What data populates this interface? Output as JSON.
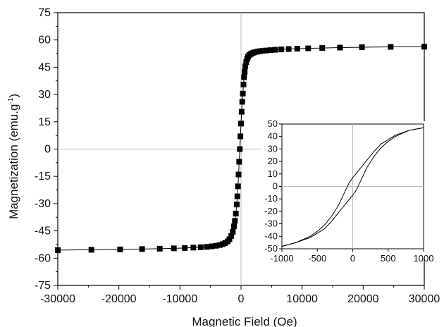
{
  "chart_data": [
    {
      "type": "scatter",
      "xlabel": "Magnetic Field (Oe)",
      "ylabel_main": "Magnetization (emu.g",
      "ylabel_sup": "-1",
      "ylabel_end": ")",
      "xlim": [
        -30000,
        30000
      ],
      "ylim": [
        -75,
        75
      ],
      "xticks": [
        "-30000",
        "-20000",
        "-10000",
        "0",
        "10000",
        "20000",
        "30000"
      ],
      "yticks": [
        "75",
        "60",
        "45",
        "30",
        "15",
        "0",
        "-15",
        "-30",
        "-45",
        "-60",
        "-75"
      ],
      "grid": false,
      "reference_lines": {
        "x": 0,
        "y": 0
      },
      "series": [
        {
          "marker": "square",
          "x": [
            -30000,
            -24500,
            -19800,
            -16200,
            -13300,
            -11000,
            -9200,
            -7800,
            -6600,
            -5600,
            -4800,
            -4100,
            -3500,
            -3000,
            -2600,
            -2200,
            -1900,
            -1600,
            -1350,
            -1150,
            -1000,
            -850,
            -700,
            -600,
            -500,
            -400,
            -300,
            -200,
            -100,
            0,
            100,
            200,
            300,
            400,
            500,
            600,
            700,
            850,
            1000,
            1150,
            1350,
            1600,
            1900,
            2200,
            2600,
            3000,
            3500,
            4100,
            4800,
            5600,
            6600,
            7800,
            9200,
            11000,
            13300,
            16200,
            19800,
            24500,
            30000
          ],
          "y": [
            -55.6,
            -55.4,
            -55.2,
            -55.0,
            -54.8,
            -54.6,
            -54.4,
            -54.2,
            -54.0,
            -53.8,
            -53.5,
            -53.2,
            -52.8,
            -52.3,
            -51.7,
            -50.8,
            -49.6,
            -47.8,
            -45.5,
            -42.5,
            -39.5,
            -35.5,
            -30.5,
            -26.0,
            -20.5,
            -14.0,
            -7.0,
            0.0,
            7.0,
            14.0,
            20.5,
            26.0,
            30.5,
            35.5,
            39.5,
            42.5,
            45.5,
            47.8,
            49.6,
            50.8,
            51.7,
            52.3,
            52.8,
            53.2,
            53.5,
            53.8,
            54.0,
            54.2,
            54.4,
            54.6,
            54.8,
            55.0,
            55.2,
            55.4,
            55.6,
            55.8,
            56.0,
            56.2,
            56.3
          ]
        }
      ]
    },
    {
      "type": "line",
      "inset": true,
      "xlim": [
        -1000,
        1000
      ],
      "ylim": [
        -50,
        50
      ],
      "xticks": [
        "-1000",
        "-500",
        "0",
        "500",
        "1000"
      ],
      "yticks": [
        "50",
        "40",
        "30",
        "20",
        "10",
        "0",
        "-10",
        "-20",
        "-30",
        "-40",
        "-50"
      ],
      "reference_lines": {
        "x": 0,
        "y": 0
      },
      "series": [
        {
          "x": [
            1000,
            800,
            600,
            400,
            300,
            200,
            100,
            0,
            -50,
            -100,
            -200,
            -300,
            -400,
            -500,
            -600,
            -800,
            -1000
          ],
          "y": [
            47,
            45,
            41,
            34,
            28,
            21,
            14,
            7,
            3,
            -3,
            -15,
            -24,
            -31,
            -36,
            -40,
            -45,
            -48
          ]
        },
        {
          "x": [
            -1000,
            -800,
            -600,
            -400,
            -300,
            -200,
            -100,
            0,
            50,
            100,
            200,
            300,
            400,
            500,
            600,
            800,
            1000
          ],
          "y": [
            -48,
            -45,
            -41,
            -34,
            -28,
            -21,
            -14,
            -7,
            -3,
            3,
            15,
            24,
            31,
            36,
            40,
            45,
            47
          ]
        }
      ]
    }
  ]
}
